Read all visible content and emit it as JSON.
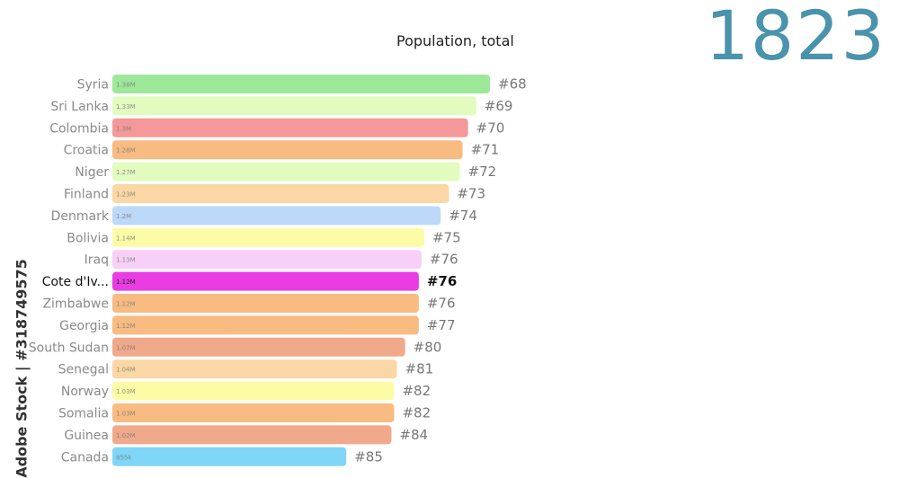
{
  "title": "Population, total",
  "year": "1823",
  "watermark": "Adobe Stock | #318749575",
  "chart_data": {
    "type": "bar",
    "orientation": "horizontal",
    "title": "Population, total",
    "highlight": "Cote d'Iv...",
    "xlim": [
      0,
      1.38
    ],
    "categories": [
      "Syria",
      "Sri Lanka",
      "Colombia",
      "Croatia",
      "Niger",
      "Finland",
      "Denmark",
      "Bolivia",
      "Iraq",
      "Cote d'Iv...",
      "Zimbabwe",
      "Georgia",
      "South Sudan",
      "Senegal",
      "Norway",
      "Somalia",
      "Guinea",
      "Canada"
    ],
    "values": [
      1.38,
      1.33,
      1.3,
      1.28,
      1.27,
      1.23,
      1.2,
      1.14,
      1.13,
      1.12,
      1.12,
      1.12,
      1.07,
      1.04,
      1.03,
      1.03,
      1.02,
      0.855
    ],
    "value_labels": [
      "1.38M",
      "1.33M",
      "1.3M",
      "1.28M",
      "1.27M",
      "1.23M",
      "1.2M",
      "1.14M",
      "1.13M",
      "1.12M",
      "1.12M",
      "1.12M",
      "1.07M",
      "1.04M",
      "1.03M",
      "1.03M",
      "1.02M",
      "855k"
    ],
    "ranks": [
      "#68",
      "#69",
      "#70",
      "#71",
      "#72",
      "#73",
      "#74",
      "#75",
      "#76",
      "#76",
      "#76",
      "#77",
      "#80",
      "#81",
      "#82",
      "#82",
      "#84",
      "#85"
    ],
    "colors": [
      "#9ee89a",
      "#e2fbbf",
      "#f49899",
      "#f8bb82",
      "#e2fbbf",
      "#fad7a4",
      "#bdd9f9",
      "#fdfca6",
      "#f8d0f7",
      "#e93ce3",
      "#f8bb82",
      "#f8bb82",
      "#f0a98a",
      "#fad7a4",
      "#fdfca6",
      "#f8bb82",
      "#f0a98a",
      "#7fd6f7"
    ]
  }
}
